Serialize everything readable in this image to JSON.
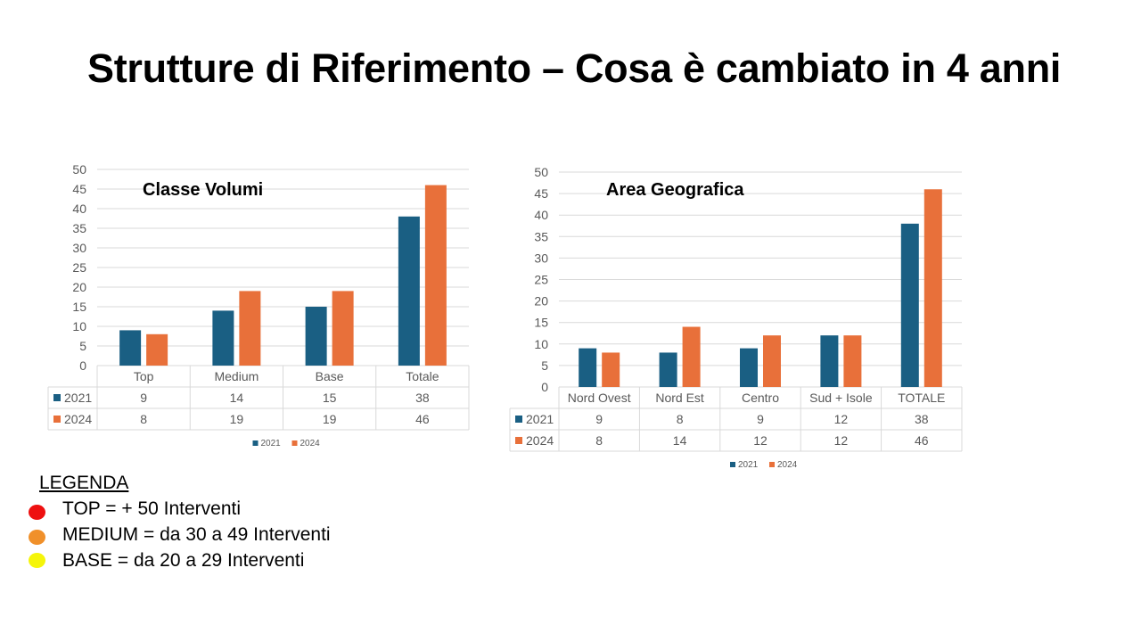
{
  "slide": {
    "title": "Strutture di Riferimento – Cosa è cambiato in 4 anni"
  },
  "colors": {
    "series_2021": "#1a5f83",
    "series_2024": "#e8703a"
  },
  "chart_data": [
    {
      "type": "bar",
      "title": "Classe Volumi",
      "categories": [
        "Top",
        "Medium",
        "Base",
        "Totale"
      ],
      "series": [
        {
          "name": "2021",
          "values": [
            9,
            14,
            15,
            38
          ]
        },
        {
          "name": "2024",
          "values": [
            8,
            19,
            19,
            46
          ]
        }
      ],
      "yticks": [
        "0",
        "5",
        "10",
        "15",
        "20",
        "25",
        "30",
        "35",
        "40",
        "45",
        "50"
      ],
      "ylim": [
        0,
        50
      ],
      "grid": true,
      "data_table": true,
      "legend_position": "bottom"
    },
    {
      "type": "bar",
      "title": "Area Geografica",
      "categories": [
        "Nord Ovest",
        "Nord Est",
        "Centro",
        "Sud + Isole",
        "TOTALE"
      ],
      "series": [
        {
          "name": "2021",
          "values": [
            9,
            8,
            9,
            12,
            38
          ]
        },
        {
          "name": "2024",
          "values": [
            8,
            14,
            12,
            12,
            46
          ]
        }
      ],
      "yticks": [
        "0",
        "5",
        "10",
        "15",
        "20",
        "25",
        "30",
        "35",
        "40",
        "45",
        "50"
      ],
      "ylim": [
        0,
        50
      ],
      "grid": true,
      "data_table": true,
      "legend_position": "bottom"
    }
  ],
  "legend": {
    "title": "LEGENDA",
    "items": [
      {
        "text": "TOP = + 50 Interventi",
        "color": "#ee1010"
      },
      {
        "text": "MEDIUM = da 30 a 49  Interventi",
        "color": "#f0902a"
      },
      {
        "text": "BASE = da 20 a 29  Interventi",
        "color": "#f5f50a"
      }
    ]
  }
}
